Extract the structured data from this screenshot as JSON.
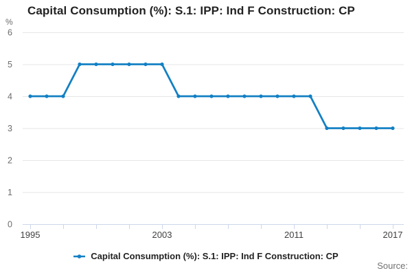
{
  "title": "Capital Consumption (%): S.1: IPP: Ind F Construction: CP",
  "y_axis_unit": "%",
  "legend": {
    "label": "Capital Consumption (%): S.1: IPP: Ind F Construction: CP"
  },
  "source_label": "Source:",
  "colors": {
    "line": "#1380c4",
    "grid": "#e6e6e6",
    "axis": "#ccd6eb",
    "x_tick_text": "#414042",
    "y_tick_text": "#6b6b6b",
    "title_text": "#222222"
  },
  "chart_data": {
    "type": "line",
    "title": "Capital Consumption (%): S.1: IPP: Ind F Construction: CP",
    "ylabel": "%",
    "xlabel": "",
    "x": [
      1995,
      1996,
      1997,
      1998,
      1999,
      2000,
      2001,
      2002,
      2003,
      2004,
      2005,
      2006,
      2007,
      2008,
      2009,
      2010,
      2011,
      2012,
      2013,
      2014,
      2015,
      2016,
      2017
    ],
    "values": [
      4,
      4,
      4,
      5,
      5,
      5,
      5,
      5,
      5,
      4,
      4,
      4,
      4,
      4,
      4,
      4,
      4,
      4,
      3,
      3,
      3,
      3,
      3
    ],
    "ylim": [
      0,
      6
    ],
    "yticks": [
      0,
      1,
      2,
      3,
      4,
      5,
      6
    ],
    "xtick_marks": [
      1995,
      1997,
      1999,
      2001,
      2003,
      2005,
      2007,
      2009,
      2011,
      2013,
      2015,
      2017
    ],
    "xtick_labels": [
      1995,
      2003,
      2011,
      2017
    ],
    "grid": true,
    "legend_position": "bottom",
    "series_name": "Capital Consumption (%): S.1: IPP: Ind F Construction: CP"
  }
}
